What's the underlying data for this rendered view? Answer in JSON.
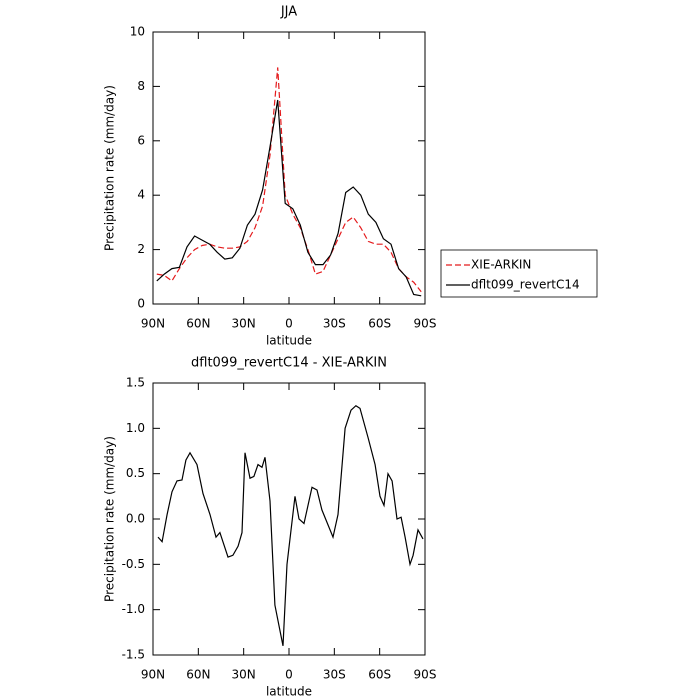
{
  "chart_data": [
    {
      "type": "line",
      "title": "JJA",
      "xlabel": "latitude",
      "ylabel": "Precipitation rate (mm/day)",
      "x": [
        87.5,
        82.5,
        77.5,
        72.5,
        67.5,
        62.5,
        57.5,
        52.5,
        47.5,
        42.5,
        37.5,
        32.5,
        27.5,
        22.5,
        17.5,
        12.5,
        7.5,
        2.5,
        -2.5,
        -7.5,
        -12.5,
        -17.5,
        -22.5,
        -27.5,
        -32.5,
        -37.5,
        -42.5,
        -47.5,
        -52.5,
        -57.5,
        -62.5,
        -67.5,
        -72.5,
        -77.5,
        -82.5,
        -87.5
      ],
      "series": [
        {
          "name": "XIE-ARKIN",
          "color": "#e41a1c",
          "dash": true,
          "values": [
            1.1,
            1.05,
            0.85,
            1.3,
            1.7,
            2.0,
            2.15,
            2.2,
            2.1,
            2.05,
            2.05,
            2.1,
            2.3,
            2.8,
            3.6,
            5.5,
            8.7,
            4.0,
            3.3,
            2.8,
            2.0,
            1.1,
            1.2,
            1.8,
            2.4,
            3.0,
            3.2,
            2.8,
            2.3,
            2.2,
            2.2,
            1.9,
            1.3,
            1.0,
            0.8,
            0.45
          ]
        },
        {
          "name": "dflt099_revertC14",
          "color": "#000000",
          "dash": false,
          "values": [
            0.85,
            1.1,
            1.3,
            1.35,
            2.1,
            2.5,
            2.35,
            2.2,
            1.9,
            1.65,
            1.7,
            2.05,
            2.9,
            3.3,
            4.2,
            5.8,
            7.5,
            3.7,
            3.5,
            2.9,
            1.9,
            1.45,
            1.45,
            1.8,
            2.6,
            4.1,
            4.3,
            4.0,
            3.3,
            3.0,
            2.4,
            2.2,
            1.3,
            1.0,
            0.35,
            0.3
          ]
        }
      ],
      "xlim": [
        90,
        -90
      ],
      "xticks": [
        {
          "value": 90,
          "label": "90N"
        },
        {
          "value": 60,
          "label": "60N"
        },
        {
          "value": 30,
          "label": "30N"
        },
        0,
        {
          "value": -30,
          "label": "30S"
        },
        {
          "value": -60,
          "label": "60S"
        },
        {
          "value": -90,
          "label": "90S"
        }
      ],
      "ylim": [
        0,
        10
      ],
      "yticks": [
        0,
        2,
        4,
        6,
        8,
        10
      ],
      "legend": "right"
    },
    {
      "type": "line",
      "title": "dflt099_revertC14 - XIE-ARKIN",
      "xlabel": "latitude",
      "ylabel": "Precipitation rate (mm/day)",
      "x": [
        86.7,
        84,
        80.7,
        77.4,
        74.1,
        70.8,
        68.2,
        65.5,
        60.9,
        56.9,
        52.3,
        48.3,
        45.7,
        40.4,
        37.1,
        33.7,
        31.1,
        29.1,
        25.8,
        23.2,
        20.5,
        17.9,
        15.9,
        12.6,
        9.3,
        4,
        1.3,
        -4,
        -6.6,
        -9.9,
        -15.2,
        -18.5,
        -21.8,
        -29.1,
        -32.4,
        -37.1,
        -41,
        -44.3,
        -47,
        -52.3,
        -57,
        -60.2,
        -62.9,
        -65.5,
        -68.2,
        -71.5,
        -74.2,
        -76.8,
        -80.1,
        -82.1,
        -85.4,
        -88.7
      ],
      "series": [
        {
          "color": "#000000",
          "dash": false,
          "values": [
            -0.2,
            -0.25,
            0.05,
            0.3,
            0.42,
            0.43,
            0.65,
            0.73,
            0.6,
            0.28,
            0.05,
            -0.2,
            -0.15,
            -0.42,
            -0.4,
            -0.3,
            -0.15,
            0.73,
            0.45,
            0.47,
            0.6,
            0.57,
            0.68,
            0.2,
            -0.95,
            -1.4,
            -0.5,
            0.25,
            0.0,
            -0.05,
            0.35,
            0.32,
            0.1,
            -0.2,
            0.05,
            1.0,
            1.2,
            1.25,
            1.22,
            0.9,
            0.6,
            0.25,
            0.15,
            0.5,
            0.42,
            0.0,
            0.02,
            -0.2,
            -0.5,
            -0.4,
            -0.12,
            -0.22
          ]
        }
      ],
      "xlim": [
        90,
        -90
      ],
      "xticks": [
        {
          "value": 90,
          "label": "90N"
        },
        {
          "value": 60,
          "label": "60N"
        },
        {
          "value": 30,
          "label": "30N"
        },
        0,
        {
          "value": -30,
          "label": "30S"
        },
        {
          "value": -60,
          "label": "60S"
        },
        {
          "value": -90,
          "label": "90S"
        }
      ],
      "ylim": [
        -1.5,
        1.5
      ],
      "yticks": [
        -1.5,
        {
          "value": -1.0,
          "label": "-1.0"
        },
        -0.5,
        {
          "value": 0.0,
          "label": "0.0"
        },
        0.5,
        {
          "value": 1.0,
          "label": "1.0"
        },
        1.5
      ]
    }
  ]
}
